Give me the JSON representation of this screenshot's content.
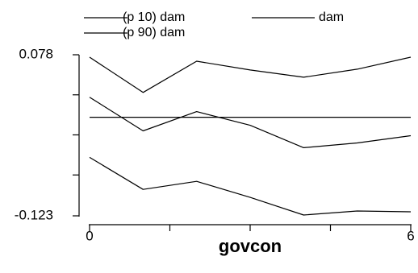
{
  "chart_data": {
    "type": "line",
    "x": [
      0,
      1,
      2,
      3,
      4,
      5,
      6
    ],
    "series": [
      {
        "name": "(p 10) dam",
        "values": [
          -0.05,
          -0.09,
          -0.08,
          -0.1,
          -0.122,
          -0.117,
          -0.118
        ]
      },
      {
        "name": "dam",
        "values": [
          0.0,
          0.0,
          0.0,
          0.0,
          0.0,
          0.0,
          0.0
        ]
      },
      {
        "name": "(p 90) dam",
        "values": [
          0.075,
          0.031,
          0.07,
          0.059,
          0.05,
          0.06,
          0.075
        ]
      }
    ],
    "series_extra": [
      {
        "values": [
          0.025,
          -0.017,
          0.007,
          -0.01,
          -0.038,
          -0.032,
          -0.023
        ]
      }
    ],
    "xlabel": "govcon",
    "ylabel": "",
    "xlim": [
      0,
      6
    ],
    "ylim": [
      -0.123,
      0.078
    ],
    "x_tick_labels": [
      {
        "value": 0,
        "label": "0"
      },
      {
        "value": 6,
        "label": "6"
      }
    ],
    "x_minor_ticks": [
      1.5,
      3,
      4.5
    ],
    "y_tick_labels": [
      {
        "value": 0.078,
        "label": "0.078"
      },
      {
        "value": -0.123,
        "label": "-0.123"
      }
    ],
    "y_minor_ticks": [
      0.028,
      -0.022,
      -0.072
    ],
    "grid": false,
    "legend_position": "top"
  }
}
